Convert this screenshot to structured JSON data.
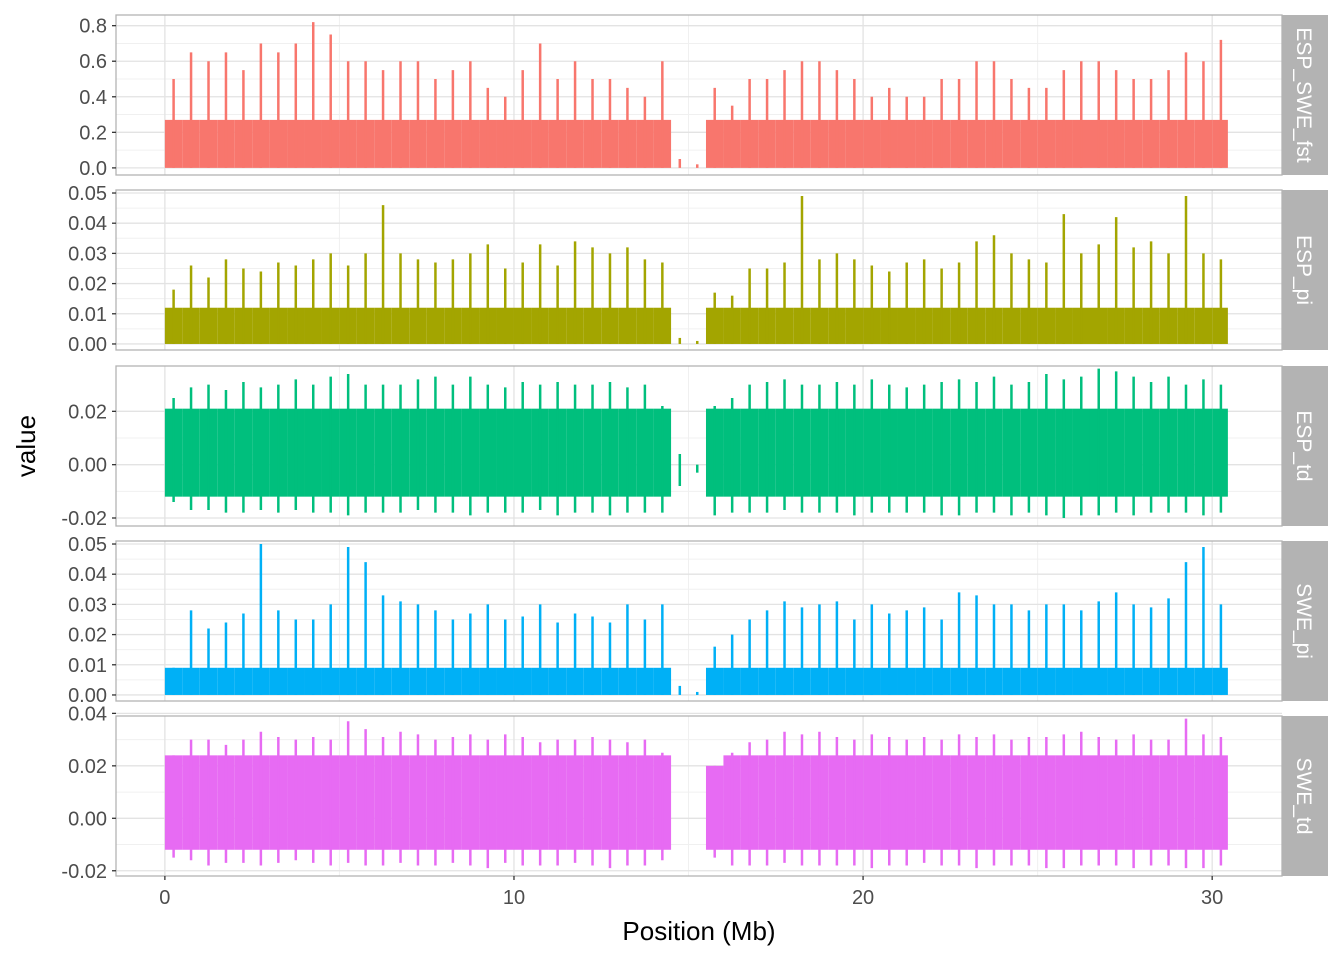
{
  "chart_data": {
    "type": "line",
    "xlabel": "Position (Mb)",
    "ylabel": "value",
    "x_ticks": [
      0,
      10,
      20,
      30
    ],
    "xlim": [
      -1.4,
      32.0
    ],
    "grid": true,
    "gap_mb": [
      14.4,
      15.4
    ],
    "positions": [
      0,
      0.5,
      1,
      1.5,
      2,
      2.5,
      3,
      3.5,
      4,
      4.5,
      5,
      5.5,
      6,
      6.5,
      7,
      7.5,
      8,
      8.5,
      9,
      9.5,
      10,
      10.5,
      11,
      11.5,
      12,
      12.5,
      13,
      13.5,
      14,
      14.5,
      15,
      15.5,
      16,
      16.5,
      17,
      17.5,
      18,
      18.5,
      19,
      19.5,
      20,
      20.5,
      21,
      21.5,
      22,
      22.5,
      23,
      23.5,
      24,
      24.5,
      25,
      25.5,
      26,
      26.5,
      27,
      27.5,
      28,
      28.5,
      29,
      29.5,
      30,
      30.5
    ],
    "panels": [
      {
        "name": "ESP_SWE_fst",
        "color": "#F8766D",
        "ylim": [
          -0.04,
          0.86
        ],
        "yticks": [
          0.0,
          0.2,
          0.4,
          0.6,
          0.8
        ],
        "tick_labels": [
          "0.0",
          "0.2",
          "0.4",
          "0.6",
          "0.8"
        ],
        "typical": [
          0,
          0.27
        ],
        "max": [
          0.5,
          0.65,
          0.6,
          0.65,
          0.55,
          0.7,
          0.65,
          0.7,
          0.82,
          0.75,
          0.6,
          0.6,
          0.55,
          0.6,
          0.6,
          0.5,
          0.55,
          0.6,
          0.45,
          0.4,
          0.55,
          0.7,
          0.5,
          0.6,
          0.5,
          0.5,
          0.45,
          0.4,
          0.6,
          0.05,
          0.02,
          0.45,
          0.35,
          0.5,
          0.5,
          0.55,
          0.6,
          0.6,
          0.55,
          0.5,
          0.4,
          0.45,
          0.4,
          0.4,
          0.5,
          0.5,
          0.6,
          0.6,
          0.5,
          0.45,
          0.45,
          0.55,
          0.6,
          0.6,
          0.55,
          0.5,
          0.5,
          0.55,
          0.65,
          0.6,
          0.72,
          0.55
        ],
        "min": null
      },
      {
        "name": "ESP_pi",
        "color": "#A3A500",
        "ylim": [
          -0.002,
          0.051
        ],
        "yticks": [
          0,
          0.01,
          0.02,
          0.03,
          0.04,
          0.05
        ],
        "tick_labels": [
          "0.00",
          "0.01",
          "0.02",
          "0.03",
          "0.04",
          "0.05"
        ],
        "typical": [
          0,
          0.012
        ],
        "max": [
          0.018,
          0.026,
          0.022,
          0.028,
          0.025,
          0.024,
          0.027,
          0.026,
          0.028,
          0.03,
          0.026,
          0.03,
          0.046,
          0.03,
          0.028,
          0.027,
          0.028,
          0.03,
          0.033,
          0.025,
          0.027,
          0.033,
          0.026,
          0.034,
          0.032,
          0.03,
          0.032,
          0.028,
          0.027,
          0.002,
          0.001,
          0.017,
          0.016,
          0.025,
          0.025,
          0.027,
          0.049,
          0.028,
          0.03,
          0.028,
          0.026,
          0.024,
          0.027,
          0.028,
          0.025,
          0.027,
          0.034,
          0.036,
          0.03,
          0.028,
          0.027,
          0.043,
          0.03,
          0.033,
          0.042,
          0.032,
          0.034,
          0.03,
          0.049,
          0.03,
          0.028,
          0.018
        ],
        "min": null
      },
      {
        "name": "ESP_td",
        "color": "#00BF7D",
        "ylim": [
          -0.023,
          0.037
        ],
        "yticks": [
          -0.02,
          0,
          0.02
        ],
        "tick_labels": [
          "-0.02",
          "0.00",
          "0.02"
        ],
        "typical": [
          -0.012,
          0.021
        ],
        "max": [
          0.025,
          0.029,
          0.03,
          0.028,
          0.031,
          0.029,
          0.03,
          0.032,
          0.03,
          0.033,
          0.034,
          0.03,
          0.03,
          0.03,
          0.032,
          0.033,
          0.03,
          0.033,
          0.03,
          0.029,
          0.031,
          0.03,
          0.031,
          0.03,
          0.03,
          0.031,
          0.029,
          0.03,
          0.022,
          0.004,
          0.0,
          0.022,
          0.025,
          0.03,
          0.031,
          0.032,
          0.03,
          0.03,
          0.031,
          0.03,
          0.032,
          0.03,
          0.029,
          0.03,
          0.031,
          0.032,
          0.031,
          0.033,
          0.03,
          0.031,
          0.034,
          0.032,
          0.033,
          0.036,
          0.035,
          0.033,
          0.031,
          0.033,
          0.03,
          0.032,
          0.03,
          0.028
        ],
        "min": [
          -0.014,
          -0.017,
          -0.017,
          -0.018,
          -0.018,
          -0.017,
          -0.018,
          -0.017,
          -0.018,
          -0.018,
          -0.019,
          -0.018,
          -0.018,
          -0.018,
          -0.017,
          -0.018,
          -0.018,
          -0.019,
          -0.018,
          -0.018,
          -0.018,
          -0.017,
          -0.019,
          -0.018,
          -0.018,
          -0.019,
          -0.018,
          -0.018,
          -0.018,
          -0.008,
          -0.003,
          -0.019,
          -0.018,
          -0.018,
          -0.018,
          -0.017,
          -0.018,
          -0.018,
          -0.018,
          -0.019,
          -0.018,
          -0.018,
          -0.018,
          -0.018,
          -0.019,
          -0.019,
          -0.018,
          -0.018,
          -0.019,
          -0.018,
          -0.019,
          -0.02,
          -0.019,
          -0.019,
          -0.018,
          -0.019,
          -0.018,
          -0.018,
          -0.018,
          -0.019,
          -0.018,
          -0.016
        ]
      },
      {
        "name": "SWE_pi",
        "color": "#00B0F6",
        "ylim": [
          -0.002,
          0.051
        ],
        "yticks": [
          0,
          0.01,
          0.02,
          0.03,
          0.04,
          0.05
        ],
        "tick_labels": [
          "0.00",
          "0.01",
          "0.02",
          "0.03",
          "0.04",
          "0.05"
        ],
        "typical": [
          0,
          0.009
        ],
        "max": [
          0.009,
          0.028,
          0.022,
          0.024,
          0.027,
          0.05,
          0.028,
          0.025,
          0.025,
          0.03,
          0.049,
          0.044,
          0.033,
          0.031,
          0.03,
          0.028,
          0.025,
          0.027,
          0.03,
          0.025,
          0.026,
          0.03,
          0.024,
          0.027,
          0.026,
          0.024,
          0.03,
          0.025,
          0.03,
          0.003,
          0.001,
          0.016,
          0.02,
          0.025,
          0.028,
          0.031,
          0.029,
          0.03,
          0.031,
          0.025,
          0.03,
          0.027,
          0.028,
          0.029,
          0.025,
          0.034,
          0.033,
          0.03,
          0.03,
          0.028,
          0.03,
          0.03,
          0.028,
          0.031,
          0.034,
          0.03,
          0.029,
          0.032,
          0.044,
          0.049,
          0.03,
          0.015
        ],
        "min": null
      },
      {
        "name": "SWE_td",
        "color": "#E76BF3",
        "ylim": [
          -0.022,
          0.039
        ],
        "yticks": [
          -0.02,
          0,
          0.02,
          0.04
        ],
        "tick_labels": [
          "-0.02",
          "0.00",
          "0.02",
          "0.04"
        ],
        "typical": [
          -0.012,
          0.024
        ],
        "max": [
          0.024,
          0.03,
          0.03,
          0.028,
          0.03,
          0.033,
          0.031,
          0.03,
          0.031,
          0.03,
          0.037,
          0.034,
          0.031,
          0.033,
          0.032,
          0.03,
          0.031,
          0.032,
          0.03,
          0.032,
          0.031,
          0.029,
          0.03,
          0.03,
          0.031,
          0.03,
          0.029,
          0.03,
          0.025,
          0.0,
          0.0,
          0.02,
          0.025,
          0.029,
          0.03,
          0.033,
          0.032,
          0.033,
          0.031,
          0.03,
          0.032,
          0.031,
          0.03,
          0.031,
          0.03,
          0.032,
          0.031,
          0.032,
          0.03,
          0.031,
          0.031,
          0.032,
          0.033,
          0.031,
          0.03,
          0.032,
          0.03,
          0.03,
          0.038,
          0.032,
          0.031,
          0.025
        ],
        "min": [
          -0.015,
          -0.016,
          -0.018,
          -0.017,
          -0.017,
          -0.018,
          -0.017,
          -0.016,
          -0.017,
          -0.018,
          -0.017,
          -0.018,
          -0.018,
          -0.017,
          -0.018,
          -0.018,
          -0.017,
          -0.018,
          -0.019,
          -0.017,
          -0.018,
          -0.018,
          -0.018,
          -0.017,
          -0.018,
          -0.019,
          -0.018,
          -0.018,
          -0.016,
          0.0,
          0.0,
          -0.015,
          -0.018,
          -0.018,
          -0.018,
          -0.017,
          -0.018,
          -0.018,
          -0.018,
          -0.018,
          -0.019,
          -0.018,
          -0.018,
          -0.017,
          -0.018,
          -0.018,
          -0.019,
          -0.018,
          -0.018,
          -0.018,
          -0.019,
          -0.019,
          -0.018,
          -0.018,
          -0.018,
          -0.019,
          -0.018,
          -0.018,
          -0.019,
          -0.019,
          -0.018,
          -0.017
        ]
      }
    ]
  }
}
